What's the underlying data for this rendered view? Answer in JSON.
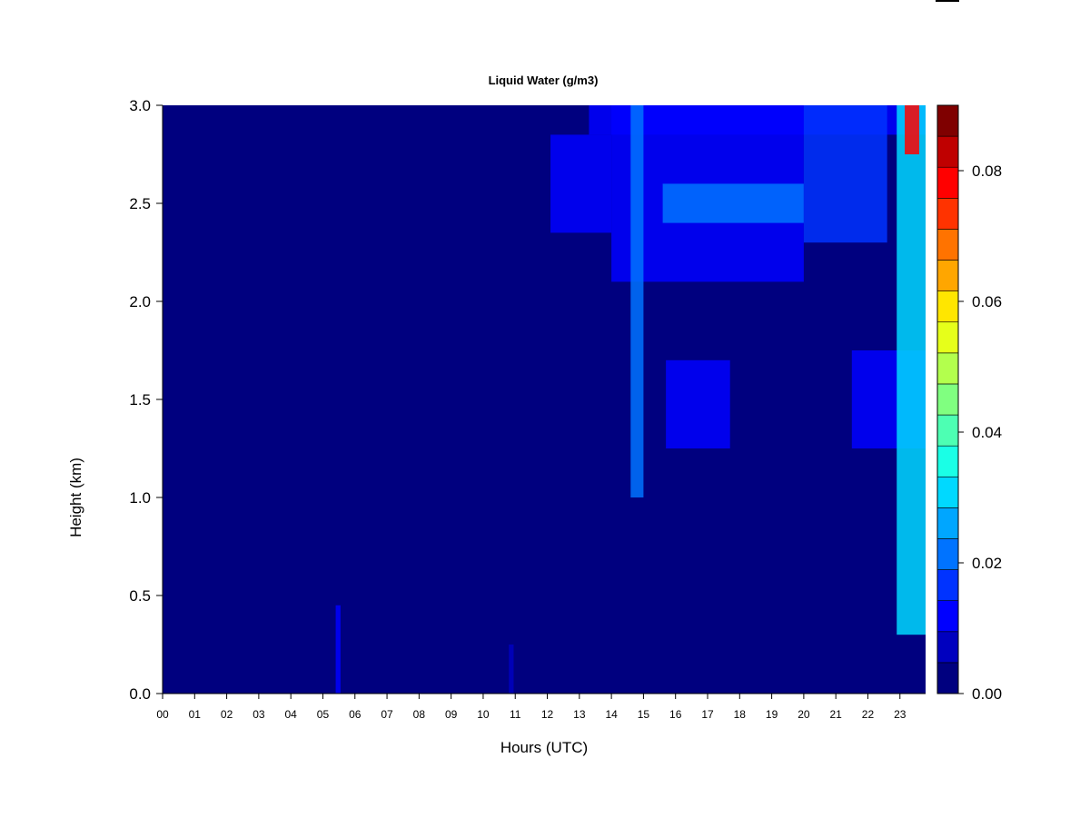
{
  "chart_data": {
    "type": "heatmap",
    "title": "Liquid Water (g/m3)",
    "xlabel": "Hours (UTC)",
    "ylabel": "Height (km)",
    "x_ticks": [
      "00",
      "01",
      "02",
      "03",
      "04",
      "05",
      "06",
      "07",
      "08",
      "09",
      "10",
      "11",
      "12",
      "13",
      "14",
      "15",
      "16",
      "17",
      "18",
      "19",
      "20",
      "21",
      "22",
      "23"
    ],
    "xlim": [
      0,
      23.8
    ],
    "y_ticks": [
      "0.0",
      "0.5",
      "1.0",
      "1.5",
      "2.0",
      "2.5",
      "3.0"
    ],
    "ylim": [
      0,
      3.0
    ],
    "colorbar": {
      "min": 0.0,
      "max": 0.09,
      "tick_labels": [
        "0.00",
        "0.02",
        "0.04",
        "0.06",
        "0.08"
      ],
      "tick_values": [
        0.0,
        0.02,
        0.04,
        0.06,
        0.08
      ],
      "colors": [
        "#00007f",
        "#0000bf",
        "#0000ff",
        "#0033ff",
        "#0073ff",
        "#00a6ff",
        "#00d9ff",
        "#1affe6",
        "#4dffb3",
        "#80ff80",
        "#b3ff4d",
        "#e6ff1a",
        "#ffe600",
        "#ffa600",
        "#ff7300",
        "#ff3300",
        "#ff0000",
        "#bf0000",
        "#7f0000"
      ]
    },
    "features": [
      {
        "hours": [
          5.4,
          5.55
        ],
        "height_km": [
          0.0,
          0.45
        ],
        "value": 0.012
      },
      {
        "hours": [
          10.8,
          10.95
        ],
        "height_km": [
          0.0,
          0.25
        ],
        "value": 0.008
      },
      {
        "hours": [
          12.1,
          14.0
        ],
        "height_km": [
          2.35,
          2.85
        ],
        "value": 0.01
      },
      {
        "hours": [
          13.3,
          24.0
        ],
        "height_km": [
          2.85,
          3.0
        ],
        "value": 0.012
      },
      {
        "hours": [
          14.0,
          20.0
        ],
        "height_km": [
          2.1,
          3.0
        ],
        "value": 0.014
      },
      {
        "hours": [
          14.6,
          15.0
        ],
        "height_km": [
          1.0,
          3.0
        ],
        "value": 0.022
      },
      {
        "hours": [
          15.6,
          20.0
        ],
        "height_km": [
          2.4,
          2.6
        ],
        "value": 0.02
      },
      {
        "hours": [
          15.7,
          17.7
        ],
        "height_km": [
          1.25,
          1.7
        ],
        "value": 0.01
      },
      {
        "hours": [
          20.0,
          22.6
        ],
        "height_km": [
          2.3,
          3.0
        ],
        "value": 0.016
      },
      {
        "hours": [
          21.5,
          23.8
        ],
        "height_km": [
          1.25,
          1.75
        ],
        "value": 0.014
      },
      {
        "hours": [
          22.9,
          23.8
        ],
        "height_km": [
          0.3,
          3.0
        ],
        "value": 0.03
      },
      {
        "hours": [
          23.15,
          23.6
        ],
        "height_km": [
          2.75,
          3.0
        ],
        "value": 0.08
      }
    ]
  }
}
